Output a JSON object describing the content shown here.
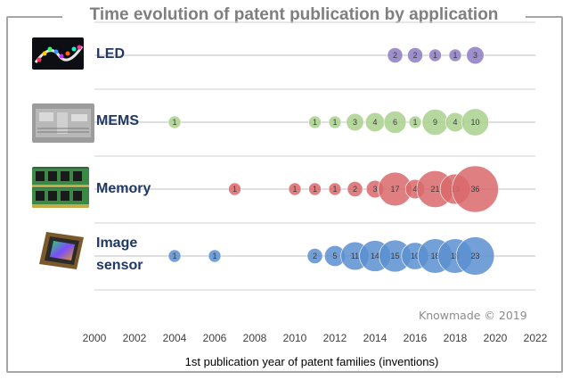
{
  "chart_data": {
    "type": "scatter",
    "title": "Time evolution of patent publication by application",
    "xlabel": "1st publication year of patent families (inventions)",
    "ylabel": "",
    "xlim": [
      2000,
      2022
    ],
    "x_ticks": [
      "2000",
      "2002",
      "2004",
      "2006",
      "2008",
      "2010",
      "2012",
      "2014",
      "2016",
      "2018",
      "2020",
      "2022"
    ],
    "grid": "horizontal",
    "watermark": "Knowmade © 2019",
    "series": [
      {
        "name": "LED",
        "color": "#8e7cc3",
        "points": [
          {
            "x": 2015,
            "value": 2
          },
          {
            "x": 2016,
            "value": 2
          },
          {
            "x": 2017,
            "value": 1
          },
          {
            "x": 2018,
            "value": 1
          },
          {
            "x": 2019,
            "value": 3
          }
        ]
      },
      {
        "name": "MEMS",
        "color": "#a9d18e",
        "points": [
          {
            "x": 2004,
            "value": 1
          },
          {
            "x": 2011,
            "value": 1
          },
          {
            "x": 2012,
            "value": 1
          },
          {
            "x": 2013,
            "value": 3
          },
          {
            "x": 2014,
            "value": 4
          },
          {
            "x": 2015,
            "value": 6
          },
          {
            "x": 2016,
            "value": 1
          },
          {
            "x": 2017,
            "value": 9
          },
          {
            "x": 2018,
            "value": 4
          },
          {
            "x": 2019,
            "value": 10
          }
        ]
      },
      {
        "name": "Memory",
        "color": "#d9696b",
        "points": [
          {
            "x": 2007,
            "value": 1
          },
          {
            "x": 2010,
            "value": 1
          },
          {
            "x": 2011,
            "value": 1
          },
          {
            "x": 2012,
            "value": 1
          },
          {
            "x": 2013,
            "value": 2
          },
          {
            "x": 2014,
            "value": 3
          },
          {
            "x": 2015,
            "value": 17
          },
          {
            "x": 2016,
            "value": 4
          },
          {
            "x": 2017,
            "value": 21
          },
          {
            "x": 2018,
            "value": 13
          },
          {
            "x": 2019,
            "value": 36
          }
        ]
      },
      {
        "name": "Image sensor",
        "color": "#5b8fd0",
        "points": [
          {
            "x": 2004,
            "value": 1
          },
          {
            "x": 2006,
            "value": 1
          },
          {
            "x": 2011,
            "value": 2
          },
          {
            "x": 2012,
            "value": 5
          },
          {
            "x": 2013,
            "value": 11
          },
          {
            "x": 2014,
            "value": 14
          },
          {
            "x": 2015,
            "value": 15
          },
          {
            "x": 2016,
            "value": 10
          },
          {
            "x": 2017,
            "value": 18
          },
          {
            "x": 2018,
            "value": 18
          },
          {
            "x": 2019,
            "value": 23
          }
        ]
      }
    ]
  },
  "labels": {
    "led": "LED",
    "mems": "MEMS",
    "memory": "Memory",
    "image_line1": "Image",
    "image_line2": "sensor"
  },
  "thumbnails": {
    "led": "led-strip-photo",
    "mems": "mems-device-photo",
    "memory": "memory-module-photo",
    "image": "image-sensor-chip-photo"
  }
}
